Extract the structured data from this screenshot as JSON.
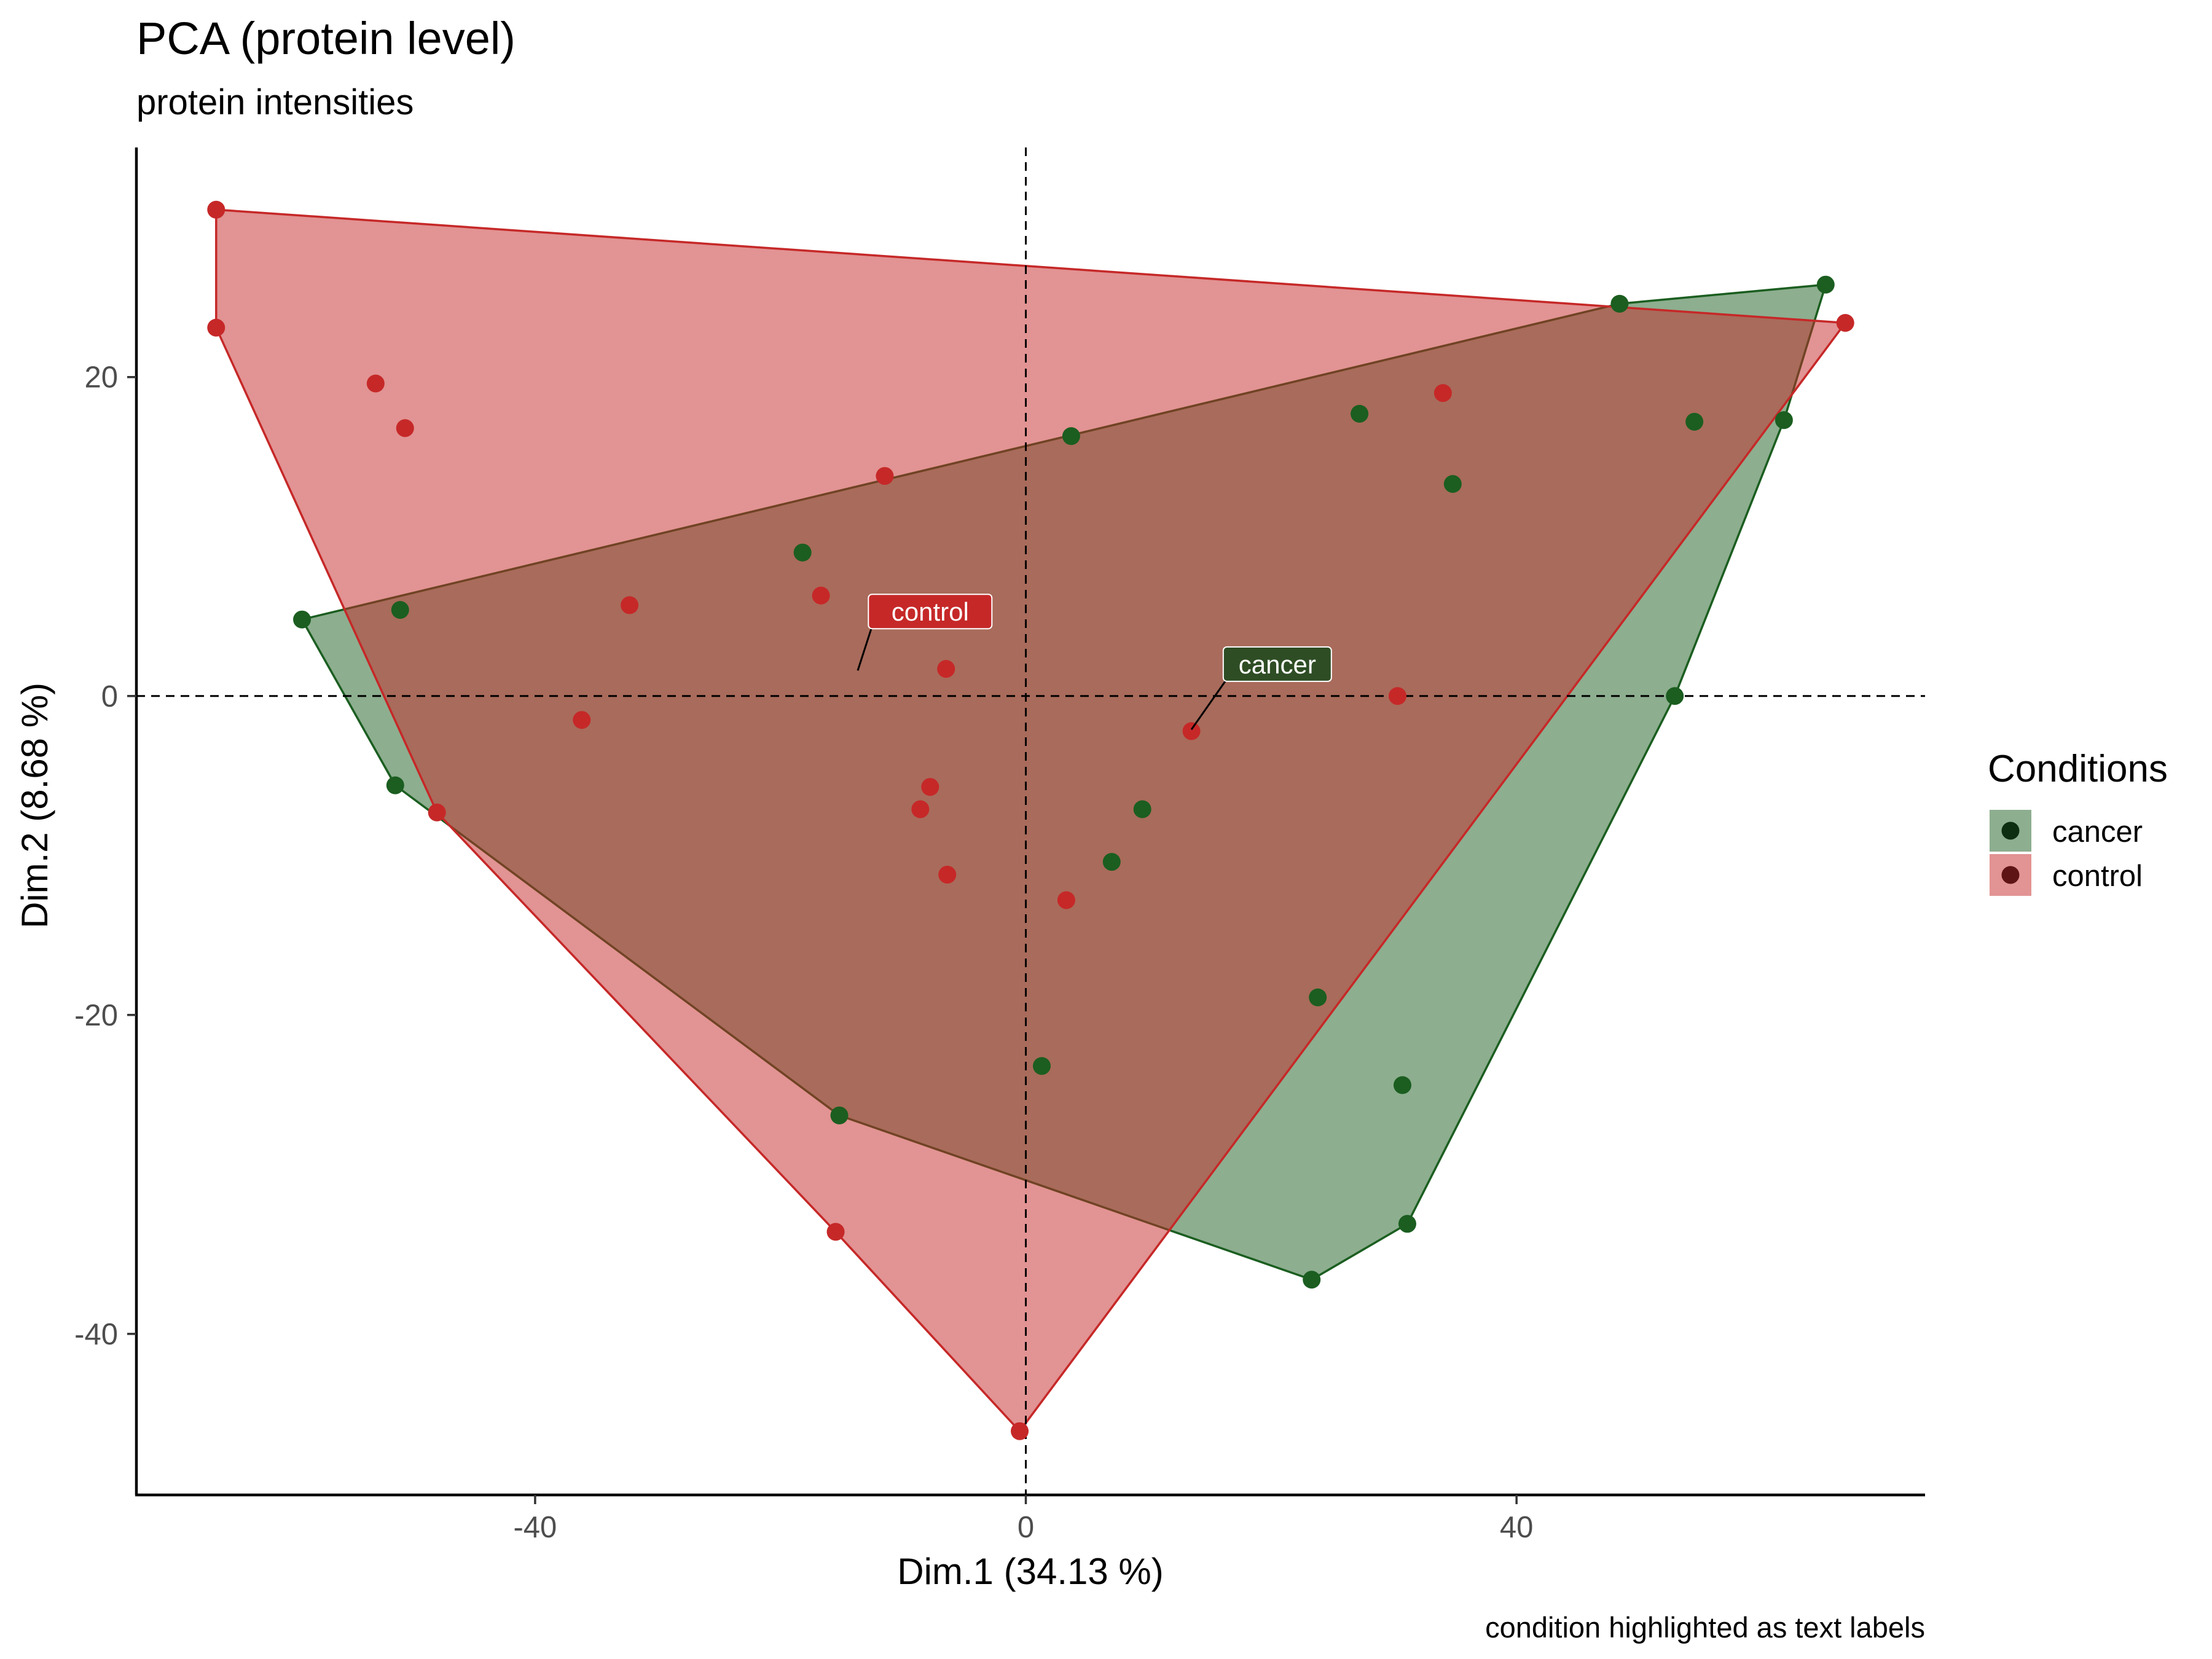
{
  "chart_data": {
    "type": "scatter",
    "title": "PCA (protein level)",
    "subtitle": "protein intensities",
    "xlabel": "Dim.1 (34.13 %)",
    "ylabel": "Dim.2 (8.68 %)",
    "caption": "condition highlighted as text labels",
    "xlim": [
      -72.5,
      73.3
    ],
    "ylim": [
      -50.1,
      34.4
    ],
    "x_ticks": [
      {
        "value": -40,
        "label": "-40"
      },
      {
        "value": 0,
        "label": "0"
      },
      {
        "value": 40,
        "label": "40"
      }
    ],
    "y_ticks": [
      {
        "value": 20,
        "label": "20"
      },
      {
        "value": 0,
        "label": "0"
      },
      {
        "value": -20,
        "label": "-20"
      },
      {
        "value": -40,
        "label": "-40"
      }
    ],
    "reference_lines": {
      "x": 0,
      "y": 0,
      "style": "dashed"
    },
    "grid": false,
    "legend": {
      "title": "Conditions",
      "position": "right"
    },
    "series": [
      {
        "name": "cancer",
        "color": "#1b5e20",
        "fill": "#1b5e20",
        "fill_opacity": 0.5,
        "points": [
          [
            65.2,
            25.8
          ],
          [
            48.4,
            24.6
          ],
          [
            61.8,
            17.3
          ],
          [
            52.9,
            0.0
          ],
          [
            31.1,
            -33.1
          ],
          [
            23.3,
            -36.6
          ],
          [
            -59.0,
            4.8
          ],
          [
            -51.4,
            -5.6
          ],
          [
            3.7,
            16.3
          ],
          [
            27.2,
            17.7
          ],
          [
            54.5,
            17.2
          ],
          [
            34.8,
            13.3
          ],
          [
            -51.0,
            5.4
          ],
          [
            -18.2,
            9.0
          ],
          [
            9.5,
            -7.1
          ],
          [
            7.0,
            -10.4
          ],
          [
            1.3,
            -23.2
          ],
          [
            23.8,
            -18.9
          ],
          [
            -15.2,
            -26.3
          ],
          [
            30.7,
            -24.4
          ]
        ],
        "hull": [
          [
            65.2,
            25.8
          ],
          [
            61.8,
            17.3
          ],
          [
            52.9,
            0.0
          ],
          [
            31.1,
            -33.1
          ],
          [
            23.3,
            -36.6
          ],
          [
            -15.2,
            -26.3
          ],
          [
            -51.4,
            -5.6
          ],
          [
            -59.0,
            4.8
          ],
          [
            48.4,
            24.6
          ]
        ],
        "label": {
          "text": "cancer",
          "anchor": [
            13.5,
            -2.1
          ],
          "at": [
            20.5,
            2.0
          ]
        }
      },
      {
        "name": "control",
        "color": "#c62828",
        "fill": "#c62828",
        "fill_opacity": 0.5,
        "points": [
          [
            -66.0,
            30.5
          ],
          [
            -66.0,
            23.1
          ],
          [
            -53.0,
            19.6
          ],
          [
            -50.6,
            16.8
          ],
          [
            -11.5,
            13.8
          ],
          [
            -16.7,
            6.3
          ],
          [
            -32.3,
            5.7
          ],
          [
            -6.5,
            1.7
          ],
          [
            -36.2,
            -1.5
          ],
          [
            -7.8,
            -5.7
          ],
          [
            -8.6,
            -7.1
          ],
          [
            -48.0,
            -7.3
          ],
          [
            -6.4,
            -11.2
          ],
          [
            3.3,
            -12.8
          ],
          [
            34.0,
            19.0
          ],
          [
            30.3,
            0.0
          ],
          [
            13.5,
            -2.2
          ],
          [
            -15.5,
            -33.6
          ],
          [
            -0.5,
            -46.1
          ],
          [
            66.8,
            23.4
          ]
        ],
        "hull": [
          [
            -66.0,
            30.5
          ],
          [
            66.8,
            23.4
          ],
          [
            -0.5,
            -46.1
          ],
          [
            -15.5,
            -33.6
          ],
          [
            -48.0,
            -7.3
          ],
          [
            -66.0,
            23.1
          ]
        ],
        "label": {
          "text": "control",
          "anchor": [
            -13.7,
            1.6
          ],
          "at": [
            -7.8,
            5.3
          ]
        }
      }
    ]
  }
}
